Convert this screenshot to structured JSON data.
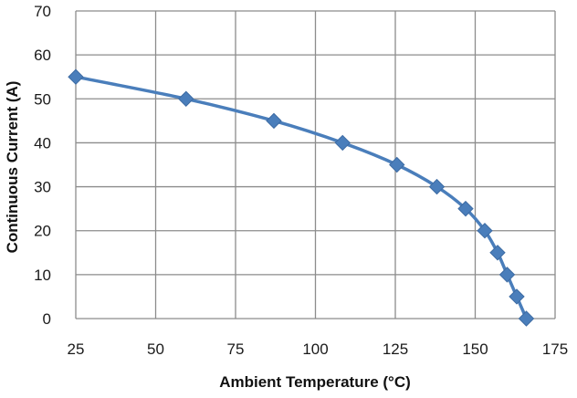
{
  "chart_data": {
    "type": "line",
    "title": "",
    "xlabel": "Ambient Temperature (°C)",
    "ylabel": "Continuous Current (A)",
    "xlim": [
      25,
      175
    ],
    "ylim": [
      0,
      70
    ],
    "x_ticks": [
      "25",
      "50",
      "75",
      "100",
      "125",
      "150",
      "175"
    ],
    "y_ticks": [
      "0",
      "10",
      "20",
      "30",
      "40",
      "50",
      "60",
      "70"
    ],
    "grid": true,
    "legend": "none",
    "series": [
      {
        "name": "Continuous Current",
        "color": "#4a7ebb",
        "x": [
          25,
          59.5,
          87,
          108.5,
          125.5,
          138,
          147,
          153,
          157,
          160,
          163,
          166
        ],
        "y": [
          55,
          50,
          45,
          40,
          35,
          30,
          25,
          20,
          15,
          10,
          5,
          0
        ]
      }
    ]
  },
  "colors": {
    "grid": "#8c8c8c",
    "line": "#4a7ebb",
    "marker": "#4a7ebb"
  }
}
